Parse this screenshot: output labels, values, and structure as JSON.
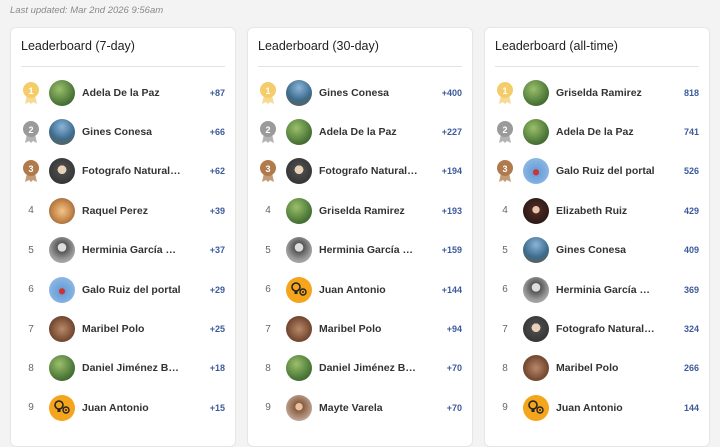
{
  "last_updated": "Last updated: Mar 2nd 2026 9:56am",
  "boards": [
    {
      "title": "Leaderboard (7-day)",
      "rows": [
        {
          "rank": "1",
          "name": "Adela De la Paz",
          "score": "+87",
          "avatar": "av-green"
        },
        {
          "rank": "2",
          "name": "Gines Conesa",
          "score": "+66",
          "avatar": "av-blue"
        },
        {
          "rank": "3",
          "name": "Fotografo Naturaleza",
          "score": "+62",
          "avatar": "av-dark"
        },
        {
          "rank": "4",
          "name": "Raquel Perez",
          "score": "+39",
          "avatar": "av-flower"
        },
        {
          "rank": "5",
          "name": "Herminia García Cruz",
          "score": "+37",
          "avatar": "av-grey"
        },
        {
          "rank": "6",
          "name": "Galo Ruiz del portal",
          "score": "+29",
          "avatar": "av-sky"
        },
        {
          "rank": "7",
          "name": "Maribel Polo",
          "score": "+25",
          "avatar": "av-animal"
        },
        {
          "rank": "8",
          "name": "Daniel Jiménez Belmonte",
          "score": "+18",
          "avatar": "av-green"
        },
        {
          "rank": "9",
          "name": "Juan Antonio",
          "score": "+15",
          "avatar": "av-orange"
        }
      ]
    },
    {
      "title": "Leaderboard (30-day)",
      "rows": [
        {
          "rank": "1",
          "name": "Gines Conesa",
          "score": "+400",
          "avatar": "av-blue"
        },
        {
          "rank": "2",
          "name": "Adela De la Paz",
          "score": "+227",
          "avatar": "av-green"
        },
        {
          "rank": "3",
          "name": "Fotografo Naturaleza",
          "score": "+194",
          "avatar": "av-dark"
        },
        {
          "rank": "4",
          "name": "Griselda Ramirez",
          "score": "+193",
          "avatar": "av-green"
        },
        {
          "rank": "5",
          "name": "Herminia García Cruz",
          "score": "+159",
          "avatar": "av-grey"
        },
        {
          "rank": "6",
          "name": "Juan Antonio",
          "score": "+144",
          "avatar": "av-orange"
        },
        {
          "rank": "7",
          "name": "Maribel Polo",
          "score": "+94",
          "avatar": "av-animal"
        },
        {
          "rank": "8",
          "name": "Daniel Jiménez Belmonte",
          "score": "+70",
          "avatar": "av-green"
        },
        {
          "rank": "9",
          "name": "Mayte Varela",
          "score": "+70",
          "avatar": "av-lady"
        }
      ]
    },
    {
      "title": "Leaderboard (all-time)",
      "rows": [
        {
          "rank": "1",
          "name": "Griselda Ramirez",
          "score": "818",
          "avatar": "av-green"
        },
        {
          "rank": "2",
          "name": "Adela De la Paz",
          "score": "741",
          "avatar": "av-green"
        },
        {
          "rank": "3",
          "name": "Galo Ruiz del portal",
          "score": "526",
          "avatar": "av-sky"
        },
        {
          "rank": "4",
          "name": "Elizabeth Ruiz",
          "score": "429",
          "avatar": "av-portrait"
        },
        {
          "rank": "5",
          "name": "Gines Conesa",
          "score": "409",
          "avatar": "av-blue"
        },
        {
          "rank": "6",
          "name": "Herminia García Cruz",
          "score": "369",
          "avatar": "av-grey"
        },
        {
          "rank": "7",
          "name": "Fotografo Naturaleza",
          "score": "324",
          "avatar": "av-dark"
        },
        {
          "rank": "8",
          "name": "Maribel Polo",
          "score": "266",
          "avatar": "av-animal"
        },
        {
          "rank": "9",
          "name": "Juan Antonio",
          "score": "144",
          "avatar": "av-orange"
        }
      ]
    }
  ],
  "medal_colors": {
    "gold": "#f4cc6a",
    "silver": "#9a9a9a",
    "bronze": "#b07a4c"
  }
}
